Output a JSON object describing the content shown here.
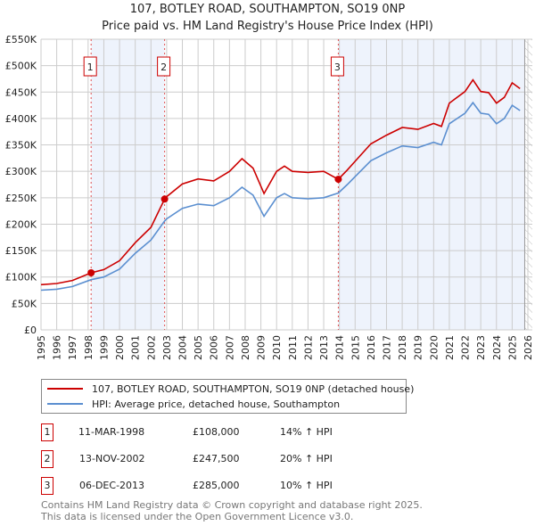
{
  "title": "107, BOTLEY ROAD, SOUTHAMPTON, SO19 0NP",
  "subtitle": "Price paid vs. HM Land Registry's House Price Index (HPI)",
  "colors": {
    "property": "#cc0000",
    "hpi": "#5b8fd0",
    "shade": "#eef3fc"
  },
  "legend": {
    "property": "107, BOTLEY ROAD, SOUTHAMPTON, SO19 0NP (detached house)",
    "hpi": "HPI: Average price, detached house, Southampton"
  },
  "sales": [
    {
      "num": "1",
      "date": "11-MAR-1998",
      "price": "£108,000",
      "hpi": "14% ↑ HPI",
      "x": 1998.19,
      "value": 108000
    },
    {
      "num": "2",
      "date": "13-NOV-2002",
      "price": "£247,500",
      "hpi": "20% ↑ HPI",
      "x": 2002.87,
      "value": 247500
    },
    {
      "num": "3",
      "date": "06-DEC-2013",
      "price": "£285,000",
      "hpi": "10% ↑ HPI",
      "x": 2013.93,
      "value": 285000
    }
  ],
  "footer": [
    "Contains HM Land Registry data © Crown copyright and database right 2025.",
    "This data is licensed under the Open Government Licence v3.0."
  ],
  "chart_data": {
    "type": "line",
    "title": "107, BOTLEY ROAD, SOUTHAMPTON, SO19 0NP",
    "xlim": [
      1995,
      2026
    ],
    "ylim": [
      0,
      550000
    ],
    "yticks": [
      0,
      50000,
      100000,
      150000,
      200000,
      250000,
      300000,
      350000,
      400000,
      450000,
      500000,
      550000
    ],
    "ytick_labels": [
      "£0",
      "£50K",
      "£100K",
      "£150K",
      "£200K",
      "£250K",
      "£300K",
      "£350K",
      "£400K",
      "£450K",
      "£500K",
      "£550K"
    ],
    "xticks": [
      1995,
      1996,
      1997,
      1998,
      1999,
      2000,
      2001,
      2002,
      2003,
      2004,
      2005,
      2006,
      2007,
      2008,
      2009,
      2010,
      2011,
      2012,
      2013,
      2014,
      2015,
      2016,
      2017,
      2018,
      2019,
      2020,
      2021,
      2022,
      2023,
      2024,
      2025,
      2026
    ],
    "grid": true,
    "x": [
      1995,
      1996,
      1997,
      1998.19,
      1999,
      2000,
      2001,
      2002,
      2002.87,
      2003,
      2004,
      2005,
      2006,
      2007,
      2007.8,
      2008.5,
      2009.2,
      2010,
      2010.5,
      2011,
      2012,
      2013,
      2013.93,
      2014.5,
      2015,
      2016,
      2017,
      2018,
      2019,
      2020,
      2020.5,
      2021,
      2022,
      2022.5,
      2023,
      2023.5,
      2024,
      2024.5,
      2025,
      2025.5
    ],
    "series": [
      {
        "name": "107, BOTLEY ROAD, SOUTHAMPTON, SO19 0NP (detached house)",
        "values": [
          85500,
          87800,
          93500,
          108000,
          114000,
          131000,
          165000,
          194000,
          247500,
          252000,
          276000,
          285600,
          282000,
          300000,
          324000,
          306000,
          258000,
          300000,
          310000,
          300000,
          298000,
          300000,
          285000,
          302500,
          319000,
          352000,
          368500,
          383000,
          379500,
          390500,
          385000,
          429000,
          451000,
          473000,
          451000,
          449000,
          429000,
          440000,
          467500,
          456500
        ]
      },
      {
        "name": "HPI: Average price, detached house, Southampton",
        "values": [
          75000,
          77000,
          82000,
          95000,
          100000,
          115000,
          145000,
          170000,
          206000,
          210000,
          230000,
          238000,
          235000,
          250000,
          270000,
          255000,
          215000,
          250000,
          258000,
          250000,
          248000,
          250000,
          259000,
          275000,
          290000,
          320000,
          335000,
          348000,
          345000,
          355000,
          350000,
          390000,
          410000,
          430000,
          410000,
          408000,
          390000,
          400000,
          425000,
          415000
        ]
      }
    ]
  }
}
